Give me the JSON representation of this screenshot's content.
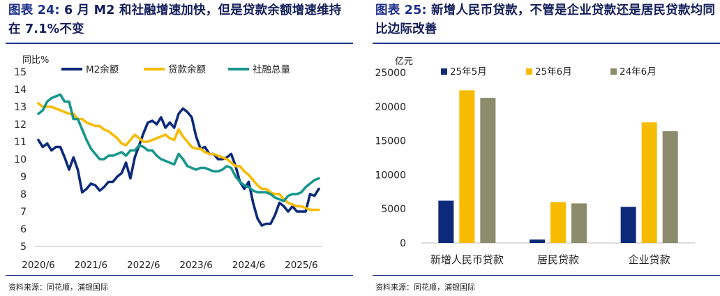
{
  "left": {
    "fig_label": "图表 24:",
    "title_rest": "6 月 M2 和社融增速加快，但是贷款余额增速维持在 7.1%不变",
    "source": "资料来源：同花顺，浦银国际",
    "colors": {
      "m2": "#0d2a7a",
      "loan": "#f7bb00",
      "tsf": "#17968c"
    },
    "chart_data": {
      "type": "line",
      "ylabel": "同比%",
      "ylim": [
        5,
        15
      ],
      "yticks": [
        "5",
        "6",
        "7",
        "8",
        "9",
        "10",
        "11",
        "12",
        "13",
        "14",
        "15"
      ],
      "xticks": [
        "2020/6",
        "2021/6",
        "2022/6",
        "2023/6",
        "2024/6",
        "2025/6"
      ],
      "x_start": "2020/6",
      "legend_position": "top",
      "series": [
        {
          "name": "M2余额",
          "key": "m2",
          "values": [
            11.1,
            10.7,
            10.9,
            10.5,
            10.7,
            10.7,
            10.1,
            9.4,
            10.1,
            9.4,
            8.1,
            8.3,
            8.6,
            8.5,
            8.2,
            8.4,
            8.7,
            8.7,
            9.0,
            9.2,
            9.8,
            8.9,
            10.1,
            10.8,
            11.5,
            12.1,
            12.2,
            12.0,
            12.4,
            11.8,
            12.1,
            11.8,
            12.6,
            12.9,
            12.7,
            12.4,
            11.3,
            10.6,
            10.7,
            10.3,
            10.3,
            10.0,
            10.0,
            10.1,
            10.3,
            9.6,
            8.7,
            8.3,
            8.7,
            7.5,
            6.6,
            6.2,
            6.3,
            6.3,
            6.8,
            7.5,
            7.3,
            7.0,
            7.3,
            7.0,
            7.0,
            7.0,
            8.0,
            7.9,
            8.3
          ]
        },
        {
          "name": "贷款余额",
          "key": "loan",
          "values": [
            13.2,
            13.0,
            13.0,
            13.0,
            12.9,
            12.8,
            12.7,
            12.6,
            12.6,
            12.3,
            12.3,
            12.1,
            12.0,
            11.9,
            11.9,
            11.7,
            11.6,
            11.4,
            11.2,
            10.9,
            10.8,
            11.1,
            11.4,
            11.2,
            11.0,
            11.0,
            11.1,
            11.2,
            11.3,
            11.4,
            11.2,
            11.1,
            11.7,
            11.3,
            11.0,
            10.7,
            10.6,
            10.6,
            10.4,
            10.3,
            10.3,
            10.2,
            10.1,
            10.0,
            9.8,
            9.6,
            9.6,
            9.3,
            9.1,
            8.8,
            8.5,
            8.3,
            8.3,
            8.1,
            8.0,
            8.0,
            7.7,
            7.5,
            7.4,
            7.3,
            7.3,
            7.2,
            7.1,
            7.1,
            7.1
          ]
        },
        {
          "name": "社融总量",
          "key": "tsf",
          "values": [
            12.6,
            12.8,
            13.3,
            13.5,
            13.6,
            13.7,
            13.3,
            13.3,
            12.3,
            12.3,
            11.7,
            11.1,
            10.6,
            10.3,
            10.0,
            10.0,
            10.2,
            10.2,
            10.3,
            10.4,
            10.2,
            10.5,
            10.5,
            10.8,
            10.7,
            10.5,
            10.5,
            10.2,
            10.0,
            9.9,
            9.8,
            9.7,
            10.3,
            10.0,
            9.6,
            9.5,
            9.4,
            9.5,
            9.5,
            9.4,
            9.3,
            9.3,
            9.4,
            9.6,
            9.5,
            9.0,
            8.7,
            8.5,
            8.4,
            8.2,
            8.1,
            8.1,
            8.1,
            8.0,
            7.8,
            7.7,
            7.6,
            7.9,
            8.0,
            8.0,
            8.1,
            8.4,
            8.6,
            8.8,
            8.9
          ]
        }
      ]
    }
  },
  "right": {
    "fig_label": "图表 25:",
    "title_rest": "新增人民币贷款，不管是企业贷款还是居民贷款均同比边际改善",
    "source": "资料来源：同花顺，浦银国际",
    "colors": {
      "may25": "#0d2a7a",
      "jun25": "#f7bb00",
      "jun24": "#8c8c6c"
    },
    "chart_data": {
      "type": "bar",
      "ylabel": "亿元",
      "ylim": [
        0,
        25000
      ],
      "yticks": [
        "0",
        "5000",
        "10000",
        "15000",
        "20000",
        "25000"
      ],
      "categories": [
        "新增人民币贷款",
        "居民贷款",
        "企业贷款"
      ],
      "legend_position": "top",
      "series": [
        {
          "name": "25年5月",
          "key": "may25",
          "values": [
            6200,
            500,
            5300
          ]
        },
        {
          "name": "25年6月",
          "key": "jun25",
          "values": [
            22400,
            6000,
            17700
          ]
        },
        {
          "name": "24年6月",
          "key": "jun24",
          "values": [
            21300,
            5800,
            16400
          ]
        }
      ]
    }
  }
}
